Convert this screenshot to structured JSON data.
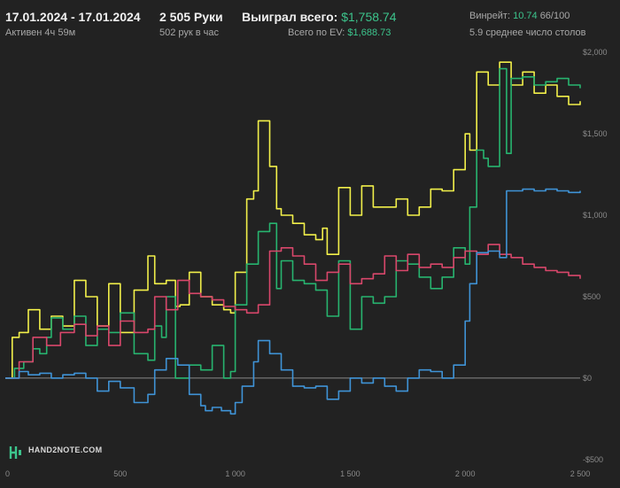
{
  "header": {
    "date_range": "17.01.2024 - 17.01.2024",
    "active": "Активен 4ч 59м",
    "hands": "2 505 Руки",
    "hands_per_hour": "502 рук в час",
    "won_label": "Выиграл всего:",
    "won_value": "$1,758.74",
    "ev_label": "Всего по EV:",
    "ev_value": "$1,688.73",
    "winrate_label": "Винрейт:",
    "winrate_value": "10.74",
    "winrate_suffix": "66/100",
    "tables": "5.9 среднее число столов"
  },
  "brand": {
    "name": "HAND2NOTE.COM"
  },
  "chart_data": {
    "type": "line",
    "xlim": [
      0,
      2500
    ],
    "ylim": [
      -550,
      2050
    ],
    "x_ticks": [
      0,
      500,
      1000,
      1500,
      2000,
      2500
    ],
    "x_tick_labels": [
      "0",
      "500",
      "1 000",
      "1 500",
      "2 000",
      "2 500"
    ],
    "y_ticks": [
      -500,
      0,
      500,
      1000,
      1500,
      2000
    ],
    "y_tick_labels": [
      "-$500",
      "$0",
      "$500",
      "$1,000",
      "$1,500",
      "$2,000"
    ],
    "colors": {
      "yellow": "#f2f04a",
      "green": "#27b46f",
      "red": "#d9476b",
      "blue": "#3f93d6",
      "zero_line": "#8a8a8a"
    },
    "series": [
      {
        "color": "yellow",
        "x": [
          0,
          30,
          60,
          100,
          150,
          200,
          250,
          300,
          350,
          400,
          450,
          500,
          560,
          620,
          650,
          700,
          740,
          760,
          800,
          850,
          900,
          950,
          980,
          1000,
          1050,
          1080,
          1100,
          1150,
          1180,
          1200,
          1250,
          1300,
          1350,
          1380,
          1400,
          1450,
          1500,
          1550,
          1600,
          1650,
          1700,
          1750,
          1800,
          1850,
          1900,
          1950,
          2000,
          2020,
          2050,
          2100,
          2150,
          2200,
          2250,
          2300,
          2350,
          2400,
          2450,
          2500
        ],
        "y": [
          0,
          250,
          280,
          420,
          300,
          380,
          320,
          600,
          500,
          320,
          580,
          280,
          540,
          750,
          580,
          600,
          440,
          450,
          650,
          500,
          450,
          420,
          400,
          650,
          1100,
          1150,
          1580,
          1300,
          1040,
          1000,
          950,
          880,
          850,
          920,
          760,
          1170,
          1000,
          1180,
          1050,
          1050,
          1100,
          1000,
          1050,
          1160,
          1150,
          1280,
          1500,
          1400,
          1880,
          1800,
          1940,
          1800,
          1880,
          1750,
          1800,
          1730,
          1680,
          1700
        ]
      },
      {
        "color": "green",
        "x": [
          0,
          40,
          80,
          120,
          150,
          180,
          200,
          250,
          300,
          350,
          400,
          450,
          500,
          560,
          620,
          650,
          680,
          700,
          740,
          780,
          800,
          850,
          900,
          950,
          980,
          1000,
          1050,
          1100,
          1150,
          1180,
          1200,
          1250,
          1300,
          1350,
          1400,
          1450,
          1500,
          1550,
          1600,
          1650,
          1700,
          1750,
          1800,
          1850,
          1900,
          1950,
          2000,
          2020,
          2050,
          2080,
          2100,
          2150,
          2180,
          2200,
          2250,
          2300,
          2350,
          2400,
          2450,
          2500
        ],
        "y": [
          0,
          60,
          100,
          180,
          150,
          250,
          370,
          300,
          380,
          200,
          300,
          280,
          400,
          150,
          110,
          320,
          250,
          500,
          0,
          0,
          80,
          50,
          200,
          0,
          40,
          450,
          700,
          900,
          950,
          550,
          720,
          600,
          580,
          540,
          380,
          720,
          300,
          500,
          460,
          500,
          720,
          700,
          620,
          550,
          620,
          800,
          700,
          1050,
          1400,
          1350,
          1300,
          1900,
          1380,
          1840,
          1850,
          1800,
          1820,
          1840,
          1800,
          1780
        ]
      },
      {
        "color": "red",
        "x": [
          0,
          60,
          120,
          180,
          240,
          300,
          350,
          400,
          450,
          500,
          560,
          620,
          650,
          700,
          750,
          800,
          850,
          900,
          950,
          1000,
          1050,
          1100,
          1150,
          1200,
          1250,
          1300,
          1350,
          1400,
          1450,
          1500,
          1550,
          1600,
          1650,
          1700,
          1750,
          1800,
          1850,
          1900,
          1950,
          2000,
          2050,
          2100,
          2150,
          2200,
          2250,
          2300,
          2350,
          2400,
          2450,
          2500
        ],
        "y": [
          0,
          100,
          250,
          200,
          280,
          330,
          260,
          320,
          200,
          350,
          280,
          300,
          500,
          420,
          600,
          520,
          500,
          480,
          440,
          420,
          400,
          450,
          780,
          800,
          750,
          700,
          600,
          650,
          700,
          580,
          610,
          640,
          750,
          660,
          760,
          680,
          700,
          680,
          740,
          780,
          760,
          820,
          760,
          740,
          700,
          680,
          660,
          650,
          630,
          610
        ]
      },
      {
        "color": "blue",
        "x": [
          0,
          60,
          100,
          150,
          200,
          250,
          300,
          350,
          400,
          450,
          500,
          560,
          620,
          650,
          700,
          750,
          800,
          850,
          870,
          900,
          940,
          980,
          1000,
          1030,
          1080,
          1100,
          1150,
          1200,
          1250,
          1300,
          1350,
          1400,
          1450,
          1500,
          1550,
          1600,
          1650,
          1700,
          1750,
          1800,
          1850,
          1900,
          1950,
          2000,
          2020,
          2050,
          2100,
          2150,
          2180,
          2200,
          2250,
          2300,
          2350,
          2400,
          2450,
          2500
        ],
        "y": [
          0,
          40,
          20,
          30,
          0,
          20,
          30,
          0,
          -80,
          -20,
          -60,
          -150,
          -100,
          50,
          120,
          80,
          -100,
          -170,
          -200,
          -180,
          -200,
          -220,
          -150,
          -50,
          100,
          230,
          150,
          50,
          -50,
          -60,
          -50,
          -130,
          -80,
          0,
          -30,
          0,
          -50,
          -80,
          0,
          50,
          40,
          0,
          80,
          350,
          580,
          770,
          780,
          740,
          1150,
          1150,
          1160,
          1150,
          1160,
          1150,
          1140,
          1150
        ]
      }
    ]
  }
}
